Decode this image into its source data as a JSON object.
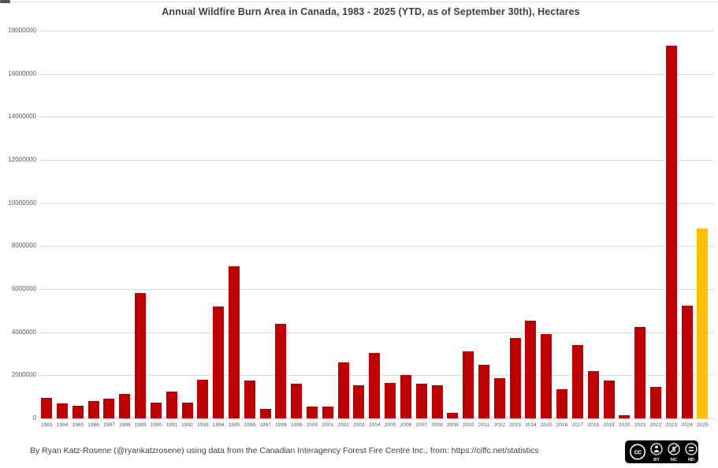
{
  "header": {
    "title": "Annual Wildfire Burn Area in Canada, 1983 - 2025 (YTD, as of September 30th), Hectares"
  },
  "footer": {
    "credit": "By Ryan Katz-Rosene (@ryankatzrosene) using data from the Canadian Interagency Forest Fire Centre Inc., from: https://ciffc.net/statistics",
    "license": {
      "type": "CC BY-NC-ND",
      "cc_label": "cc",
      "labels": [
        "BY",
        "NC",
        "ND"
      ]
    }
  },
  "colors": {
    "bar_default": "#c00000",
    "bar_highlight": "#ffc000",
    "gridline": "#d9d9d9",
    "tick_text": "#595959",
    "title_text": "#3f3f3f",
    "badge_bg": "#000000"
  },
  "chart_data": {
    "type": "bar",
    "title": "Annual Wildfire Burn Area in Canada, 1983 - 2025 (YTD, as of September 30th), Hectares",
    "xlabel": "",
    "ylabel": "",
    "ylim": [
      0,
      18000000
    ],
    "ytick_values": [
      0,
      2000000,
      4000000,
      6000000,
      8000000,
      10000000,
      12000000,
      14000000,
      16000000,
      18000000
    ],
    "grid": "horizontal",
    "legend": "none",
    "highlight_category": "2025",
    "categories": [
      "1983",
      "1984",
      "1985",
      "1986",
      "1987",
      "1988",
      "1989",
      "1990",
      "1991",
      "1992",
      "1993",
      "1994",
      "1995",
      "1996",
      "1997",
      "1998",
      "1999",
      "2000",
      "2001",
      "2002",
      "2003",
      "2004",
      "2005",
      "2006",
      "2007",
      "2008",
      "2009",
      "2010",
      "2011",
      "2012",
      "2013",
      "2014",
      "2015",
      "2016",
      "2017",
      "2018",
      "2019",
      "2020",
      "2021",
      "2022",
      "2023",
      "2024",
      "2025"
    ],
    "values": [
      950000,
      700000,
      600000,
      800000,
      900000,
      1150000,
      5800000,
      750000,
      1250000,
      750000,
      1800000,
      5200000,
      7050000,
      1750000,
      450000,
      4400000,
      1600000,
      550000,
      550000,
      2600000,
      1550000,
      3050000,
      1650000,
      2000000,
      1600000,
      1550000,
      250000,
      3100000,
      2500000,
      1850000,
      3750000,
      4550000,
      3900000,
      1350000,
      3400000,
      2200000,
      1750000,
      150000,
      4250000,
      1450000,
      17300000,
      5250000,
      8800000
    ]
  }
}
